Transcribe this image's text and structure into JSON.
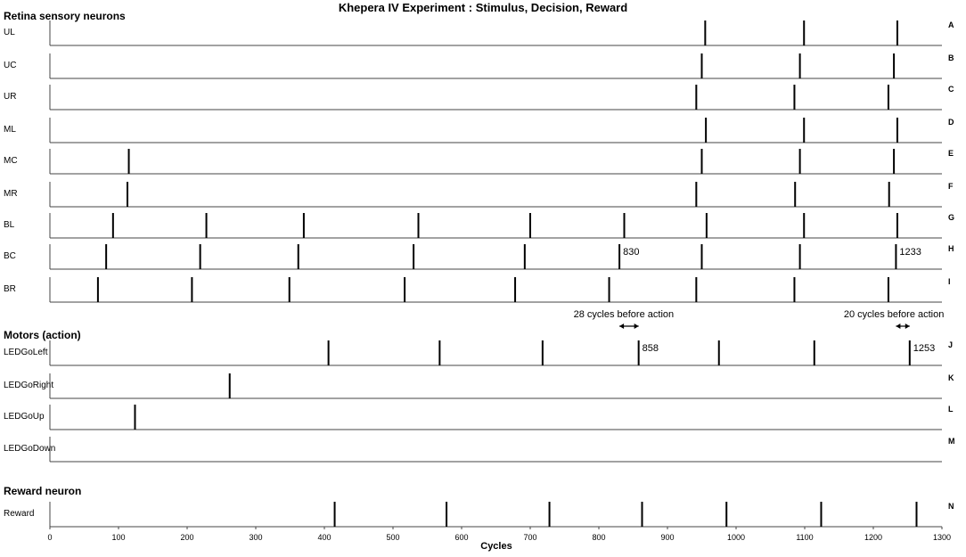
{
  "chart_data": {
    "type": "raster",
    "title": "Khepera IV Experiment : Stimulus, Decision, Reward",
    "xlabel": "Cycles",
    "xlim": [
      0,
      1300
    ],
    "xticks": [
      0,
      100,
      200,
      300,
      400,
      500,
      600,
      700,
      800,
      900,
      1000,
      1100,
      1200,
      1300
    ],
    "sections": [
      {
        "title": "Retina sensory neurons",
        "rows": [
          {
            "label": "UL",
            "letter": "A",
            "spikes": [
              955,
              1099,
              1235
            ]
          },
          {
            "label": "UC",
            "letter": "B",
            "spikes": [
              950,
              1093,
              1230
            ]
          },
          {
            "label": "UR",
            "letter": "C",
            "spikes": [
              942,
              1085,
              1222
            ]
          },
          {
            "label": "ML",
            "letter": "D",
            "spikes": [
              956,
              1099,
              1235
            ]
          },
          {
            "label": "MC",
            "letter": "E",
            "spikes": [
              115,
              950,
              1093,
              1230
            ]
          },
          {
            "label": "MR",
            "letter": "F",
            "spikes": [
              113,
              942,
              1086,
              1223
            ]
          },
          {
            "label": "BL",
            "letter": "G",
            "spikes": [
              92,
              228,
              370,
              537,
              700,
              837,
              957,
              1099,
              1235
            ]
          },
          {
            "label": "BC",
            "letter": "H",
            "spikes": [
              82,
              219,
              362,
              530,
              692,
              830,
              950,
              1093,
              1233
            ]
          },
          {
            "label": "BR",
            "letter": "I",
            "spikes": [
              70,
              207,
              349,
              517,
              678,
              815,
              942,
              1085,
              1222
            ]
          }
        ]
      },
      {
        "title": "Motors (action)",
        "rows": [
          {
            "label": "LEDGoLeft",
            "letter": "J",
            "spikes": [
              406,
              568,
              718,
              858,
              975,
              1114,
              1253
            ]
          },
          {
            "label": "LEDGoRight",
            "letter": "K",
            "spikes": [
              262
            ]
          },
          {
            "label": "LEDGoUp",
            "letter": "L",
            "spikes": [
              124
            ]
          },
          {
            "label": "LEDGoDown",
            "letter": "M",
            "spikes": []
          }
        ]
      },
      {
        "title": "Reward neuron",
        "rows": [
          {
            "label": "Reward",
            "letter": "N",
            "spikes": [
              415,
              578,
              728,
              863,
              986,
              1124,
              1263
            ]
          }
        ]
      }
    ],
    "value_labels": [
      {
        "row": "BC",
        "x": 830,
        "text": "830"
      },
      {
        "row": "BC",
        "x": 1233,
        "text": "1233"
      },
      {
        "row": "LEDGoLeft",
        "x": 858,
        "text": "858"
      },
      {
        "row": "LEDGoLeft",
        "x": 1253,
        "text": "1253"
      }
    ],
    "annotations": [
      {
        "text": "28 cycles before action",
        "from": 830,
        "to": 858
      },
      {
        "text": "20 cycles before action",
        "from": 1233,
        "to": 1253
      }
    ]
  }
}
